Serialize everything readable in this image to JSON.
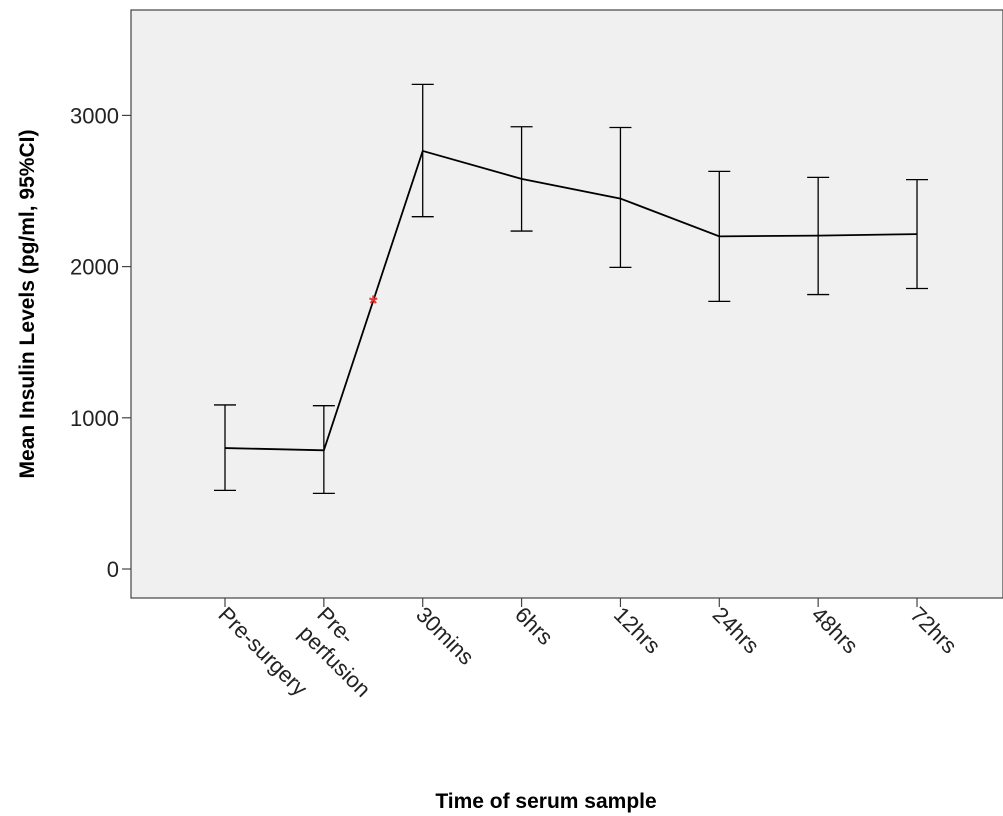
{
  "chart_data": {
    "type": "line",
    "title": "",
    "xlabel": "Time of serum sample",
    "ylabel": "Mean Insulin Levels (pg/ml, 95%CI)",
    "categories": [
      [
        "Pre-surgery"
      ],
      [
        "Pre-",
        "perfusion"
      ],
      [
        "30mins"
      ],
      [
        "6hrs"
      ],
      [
        "12hrs"
      ],
      [
        "24hrs"
      ],
      [
        "48hrs"
      ],
      [
        "72hrs"
      ]
    ],
    "values": [
      800,
      785,
      2765,
      2580,
      2450,
      2200,
      2205,
      2215
    ],
    "ci_lower": [
      520,
      500,
      2330,
      2235,
      1995,
      1770,
      1815,
      1855
    ],
    "ci_upper": [
      1085,
      1080,
      3205,
      2925,
      2920,
      2630,
      2590,
      2575
    ],
    "ylim": [
      -200,
      3700
    ],
    "yticks": [
      0,
      1000,
      2000,
      3000
    ],
    "grid": false,
    "legend": "none",
    "plot_background": "#f0f0f0",
    "line_color": "#000000",
    "annotation": {
      "text": "*",
      "color": "#e53333",
      "x_between": [
        1,
        2
      ],
      "y": 1800
    }
  }
}
